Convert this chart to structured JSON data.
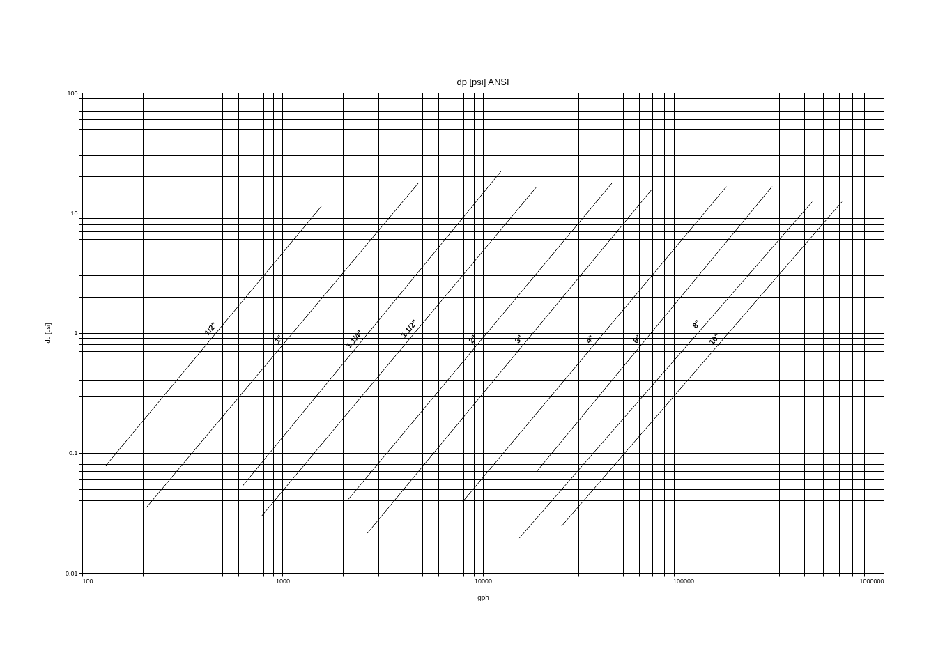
{
  "chart_data": {
    "type": "line",
    "title": "dp [psi] ANSI",
    "xlabel": "gph",
    "ylabel": "dp [psi]",
    "log": "xy",
    "grid": true,
    "legend": false,
    "marker": "none",
    "line_style": "solid",
    "xlim": [
      100,
      1000000
    ],
    "ylim": [
      0.01,
      100
    ],
    "xticks": [
      100,
      {
        "value": 200,
        "label": null
      },
      {
        "value": 300,
        "label": null
      },
      {
        "value": 400,
        "label": null
      },
      {
        "value": 500,
        "label": null
      },
      {
        "value": 600,
        "label": null
      },
      {
        "value": 700,
        "label": null
      },
      {
        "value": 800,
        "label": null
      },
      {
        "value": 900,
        "label": null
      },
      1000,
      {
        "value": 2000,
        "label": null
      },
      {
        "value": 3000,
        "label": null
      },
      {
        "value": 4000,
        "label": null
      },
      {
        "value": 5000,
        "label": null
      },
      {
        "value": 6000,
        "label": null
      },
      {
        "value": 7000,
        "label": null
      },
      {
        "value": 8000,
        "label": null
      },
      {
        "value": 9000,
        "label": null
      },
      10000,
      {
        "value": 20000,
        "label": null
      },
      {
        "value": 30000,
        "label": null
      },
      {
        "value": 40000,
        "label": null
      },
      {
        "value": 50000,
        "label": null
      },
      {
        "value": 60000,
        "label": null
      },
      {
        "value": 70000,
        "label": null
      },
      {
        "value": 80000,
        "label": null
      },
      {
        "value": 90000,
        "label": null
      },
      100000,
      {
        "value": 200000,
        "label": null
      },
      {
        "value": 300000,
        "label": null
      },
      {
        "value": 400000,
        "label": null
      },
      {
        "value": 500000,
        "label": null
      },
      {
        "value": 600000,
        "label": null
      },
      {
        "value": 700000,
        "label": null
      },
      {
        "value": 800000,
        "label": null
      },
      {
        "value": 900000,
        "label": null
      },
      1000000
    ],
    "yticks": [
      0.01,
      {
        "value": 0.02,
        "label": null
      },
      {
        "value": 0.03,
        "label": null
      },
      {
        "value": 0.04,
        "label": null
      },
      {
        "value": 0.05,
        "label": null
      },
      {
        "value": 0.06,
        "label": null
      },
      {
        "value": 0.07,
        "label": null
      },
      {
        "value": 0.08,
        "label": null
      },
      {
        "value": 0.09,
        "label": null
      },
      0.1,
      {
        "value": 0.2,
        "label": null
      },
      {
        "value": 0.3,
        "label": null
      },
      {
        "value": 0.4,
        "label": null
      },
      {
        "value": 0.5,
        "label": null
      },
      {
        "value": 0.6,
        "label": null
      },
      {
        "value": 0.7,
        "label": null
      },
      {
        "value": 0.8,
        "label": null
      },
      {
        "value": 0.9,
        "label": null
      },
      1,
      {
        "value": 2,
        "label": null
      },
      {
        "value": 3,
        "label": null
      },
      {
        "value": 4,
        "label": null
      },
      {
        "value": 5,
        "label": null
      },
      {
        "value": 6,
        "label": null
      },
      {
        "value": 7,
        "label": null
      },
      {
        "value": 8,
        "label": null
      },
      {
        "value": 9,
        "label": null
      },
      10,
      {
        "value": 20,
        "label": null
      },
      {
        "value": 30,
        "label": null
      },
      {
        "value": 40,
        "label": null
      },
      {
        "value": 50,
        "label": null
      },
      {
        "value": 60,
        "label": null
      },
      {
        "value": 70,
        "label": null
      },
      {
        "value": 80,
        "label": null
      },
      {
        "value": 90,
        "label": null
      },
      100
    ],
    "series": [
      {
        "color": "#000000",
        "x": [
          131,
          1560
        ],
        "values": [
          0.078,
          11.3
        ]
      },
      {
        "color": "#000000",
        "x": [
          209,
          4750
        ],
        "values": [
          0.035,
          17.6
        ]
      },
      {
        "color": "#000000",
        "x": [
          632,
          12300
        ],
        "values": [
          0.053,
          22.1
        ]
      },
      {
        "color": "#000000",
        "x": [
          783,
          18400
        ],
        "values": [
          0.0295,
          16.2
        ]
      },
      {
        "color": "#000000",
        "x": [
          2130,
          44000
        ],
        "values": [
          0.041,
          17.6
        ]
      },
      {
        "color": "#000000",
        "x": [
          2650,
          70000
        ],
        "values": [
          0.0214,
          15.8
        ]
      },
      {
        "color": "#000000",
        "x": [
          7870,
          164000
        ],
        "values": [
          0.0386,
          16.5
        ]
      },
      {
        "color": "#000000",
        "x": [
          18500,
          277000
        ],
        "values": [
          0.0695,
          16.5
        ]
      },
      {
        "color": "#000000",
        "x": [
          15200,
          439000
        ],
        "values": [
          0.0195,
          12.3
        ]
      },
      {
        "color": "#000000",
        "x": [
          24700,
          618000
        ],
        "values": [
          0.0245,
          12.3
        ]
      }
    ],
    "annotations": [
      {
        "text": "1/2\"",
        "x": 489,
        "y": 1.1
      },
      {
        "text": "1\"",
        "x": 1067,
        "y": 0.9
      },
      {
        "text": "1 1/4\"",
        "x": 2550,
        "y": 0.9
      },
      {
        "text": "1 1/2\"",
        "x": 4790,
        "y": 1.1
      },
      {
        "text": "2\"",
        "x": 9930,
        "y": 0.9
      },
      {
        "text": "3\"",
        "x": 16900,
        "y": 0.9
      },
      {
        "text": "4\"",
        "x": 38200,
        "y": 0.9
      },
      {
        "text": "6\"",
        "x": 65600,
        "y": 0.9
      },
      {
        "text": "8\"",
        "x": 130000,
        "y": 1.2
      },
      {
        "text": "10\"",
        "x": 160000,
        "y": 0.9
      }
    ]
  }
}
